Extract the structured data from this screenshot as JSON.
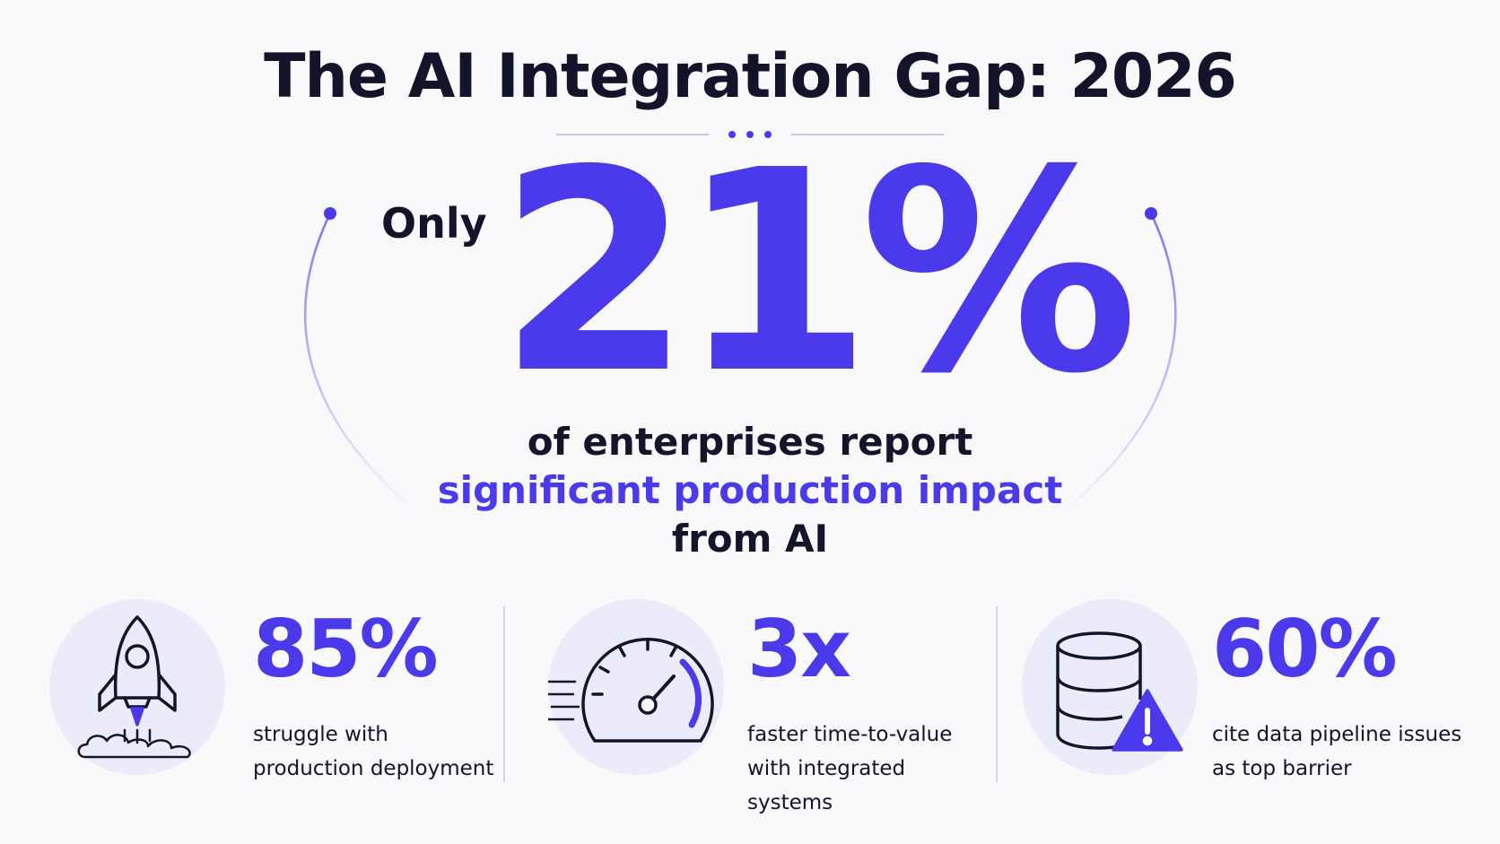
{
  "title": "The AI Integration Gap: 2026",
  "hero": {
    "prefix": "Only",
    "value": "21%",
    "line1": "of enterprises report",
    "line2": "significant production impact",
    "line3": "from AI",
    "accent_color": "#4a3aec"
  },
  "stats": [
    {
      "icon": "rocket-icon",
      "value": "85%",
      "label_line1": "struggle with",
      "label_line2": "production deployment"
    },
    {
      "icon": "speedometer-icon",
      "value": "3x",
      "label_line1": "faster time-to-value",
      "label_line2": "with integrated systems"
    },
    {
      "icon": "database-warning-icon",
      "value": "60%",
      "label_line1": "cite data pipeline issues",
      "label_line2": "as top barrier"
    }
  ]
}
